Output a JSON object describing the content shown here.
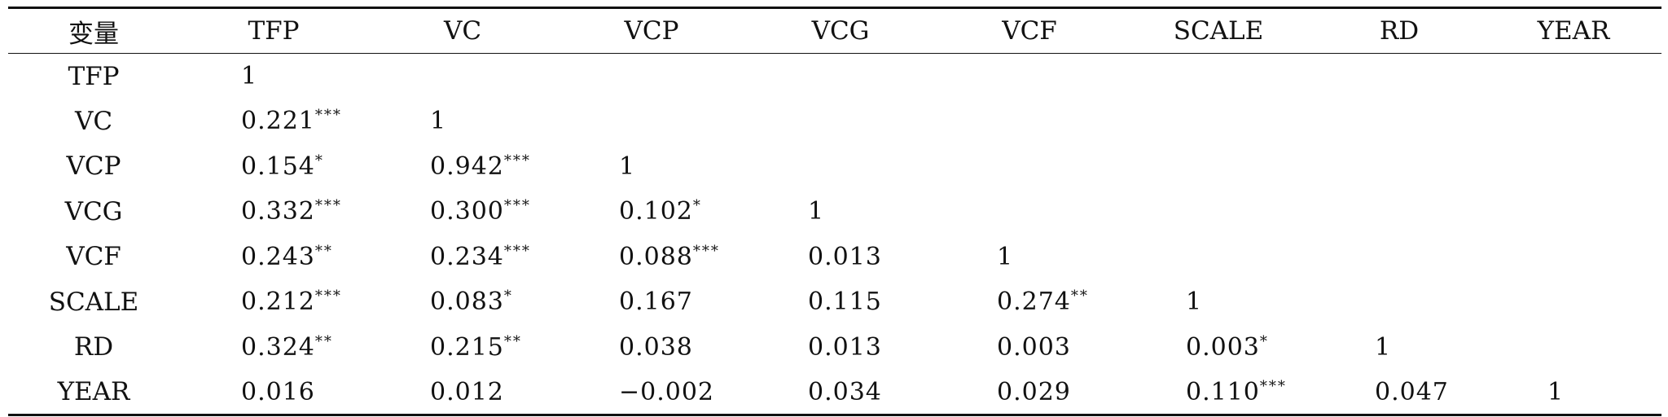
{
  "table": {
    "headers": [
      "变量",
      "TFP",
      "VC",
      "VCP",
      "VCG",
      "VCF",
      "SCALE",
      "RD",
      "YEAR"
    ],
    "rows": [
      {
        "label": "TFP",
        "cells": [
          {
            "v": "1",
            "s": ""
          }
        ]
      },
      {
        "label": "VC",
        "cells": [
          {
            "v": "0.221",
            "s": "***"
          },
          {
            "v": "1",
            "s": ""
          }
        ]
      },
      {
        "label": "VCP",
        "cells": [
          {
            "v": "0.154",
            "s": "*"
          },
          {
            "v": "0.942",
            "s": "***"
          },
          {
            "v": "1",
            "s": ""
          }
        ]
      },
      {
        "label": "VCG",
        "cells": [
          {
            "v": "0.332",
            "s": "***"
          },
          {
            "v": "0.300",
            "s": "***"
          },
          {
            "v": "0.102",
            "s": "*"
          },
          {
            "v": "1",
            "s": ""
          }
        ]
      },
      {
        "label": "VCF",
        "cells": [
          {
            "v": "0.243",
            "s": "**"
          },
          {
            "v": "0.234",
            "s": "***"
          },
          {
            "v": "0.088",
            "s": "***"
          },
          {
            "v": "0.013",
            "s": ""
          },
          {
            "v": "1",
            "s": ""
          }
        ]
      },
      {
        "label": "SCALE",
        "cells": [
          {
            "v": "0.212",
            "s": "***"
          },
          {
            "v": "0.083",
            "s": "*"
          },
          {
            "v": "0.167",
            "s": ""
          },
          {
            "v": "0.115",
            "s": ""
          },
          {
            "v": "0.274",
            "s": "**"
          },
          {
            "v": "1",
            "s": ""
          }
        ]
      },
      {
        "label": "RD",
        "cells": [
          {
            "v": "0.324",
            "s": "**"
          },
          {
            "v": "0.215",
            "s": "**"
          },
          {
            "v": "0.038",
            "s": ""
          },
          {
            "v": "0.013",
            "s": ""
          },
          {
            "v": "0.003",
            "s": ""
          },
          {
            "v": "0.003",
            "s": "*"
          },
          {
            "v": "1",
            "s": ""
          }
        ]
      },
      {
        "label": "YEAR",
        "cells": [
          {
            "v": "0.016",
            "s": ""
          },
          {
            "v": "0.012",
            "s": ""
          },
          {
            "v": "−0.002",
            "s": ""
          },
          {
            "v": "0.034",
            "s": ""
          },
          {
            "v": "0.029",
            "s": ""
          },
          {
            "v": "0.110",
            "s": "***"
          },
          {
            "v": "0.047",
            "s": ""
          },
          {
            "v": "1",
            "s": ""
          }
        ]
      }
    ]
  }
}
